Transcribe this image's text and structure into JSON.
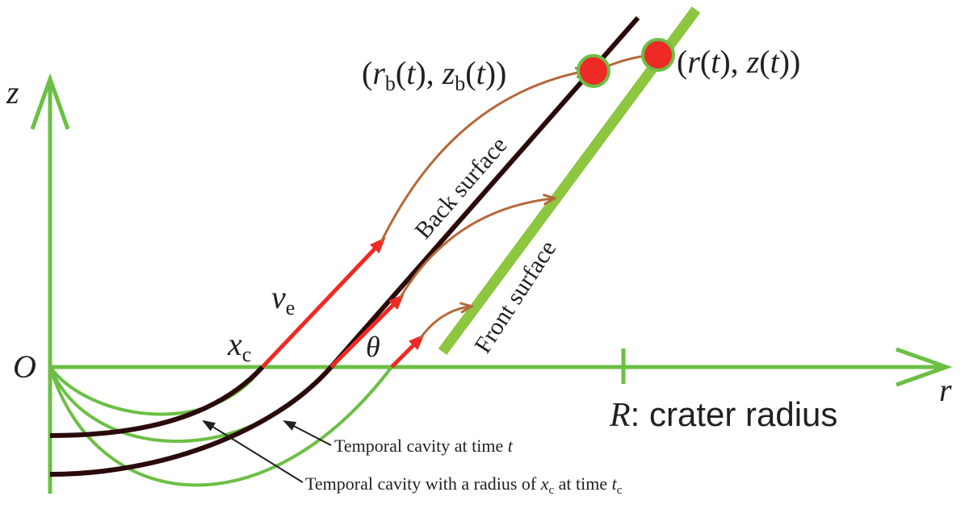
{
  "axes": {
    "z": "z",
    "r": "r",
    "origin": "O"
  },
  "point_back": {
    "parts": [
      "(",
      "r",
      "b",
      "(",
      "t",
      "), ",
      "z",
      "b",
      "(",
      "t",
      "))"
    ]
  },
  "point_front": {
    "parts": [
      "(",
      "r",
      "(",
      "t",
      "), ",
      "z",
      "(",
      "t",
      "))"
    ]
  },
  "velocity": {
    "symbol": "v",
    "subscript": "e"
  },
  "cavity_radius": {
    "symbol": "x",
    "subscript": "c"
  },
  "angle": "θ",
  "back_surface": "Back surface",
  "front_surface": "Front surface",
  "crater": {
    "symbol": "R",
    "text": ": crater radius"
  },
  "annotation_t": {
    "text": "Temporal cavity at time ",
    "var": "t"
  },
  "annotation_tc": {
    "text": "Temporal cavity with a radius of ",
    "var": "x",
    "sub": "c",
    "mid": " at time ",
    "var2": "t",
    "sub2": "c"
  }
}
